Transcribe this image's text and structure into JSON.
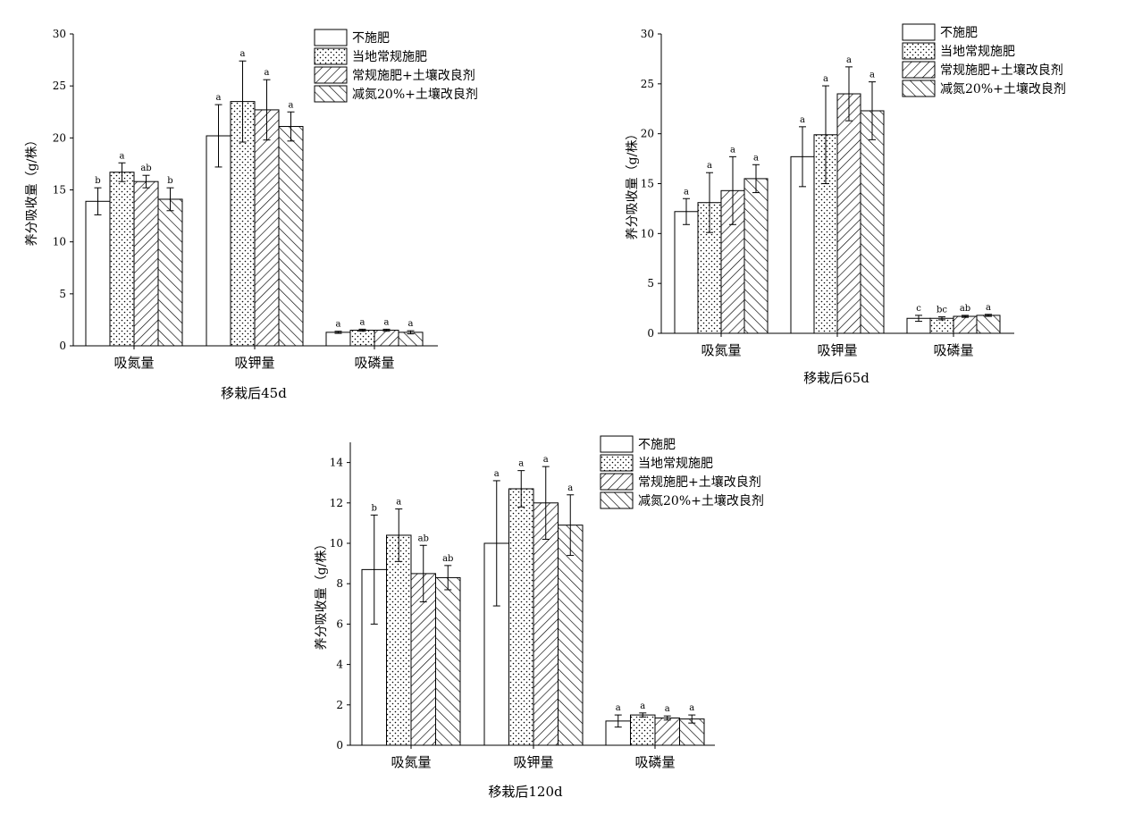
{
  "chart_data": [
    {
      "type": "bar",
      "title": "移栽后45d",
      "ylabel": "养分吸收量（g/株）",
      "ylim": [
        0,
        30
      ],
      "yticks": [
        0,
        5,
        10,
        15,
        20,
        25,
        30
      ],
      "categories": [
        "吸氮量",
        "吸钾量",
        "吸磷量"
      ],
      "legend_position": "top-right",
      "series": [
        {
          "name": "不施肥",
          "pattern": "blank",
          "values": [
            13.9,
            20.2,
            1.3
          ],
          "errors": [
            1.3,
            3.0,
            0.1
          ],
          "letters": [
            "b",
            "a",
            "a"
          ]
        },
        {
          "name": "当地常规施肥",
          "pattern": "dots",
          "values": [
            16.7,
            23.5,
            1.5
          ],
          "errors": [
            0.9,
            3.9,
            0.1
          ],
          "letters": [
            "a",
            "a",
            "a"
          ]
        },
        {
          "name": "常规施肥+土壤改良剂",
          "pattern": "backslash",
          "values": [
            15.8,
            22.7,
            1.5
          ],
          "errors": [
            0.6,
            2.9,
            0.1
          ],
          "letters": [
            "ab",
            "a",
            "a"
          ]
        },
        {
          "name": "减氮20%+土壤改良剂",
          "pattern": "slash",
          "values": [
            14.1,
            21.1,
            1.3
          ],
          "errors": [
            1.1,
            1.4,
            0.15
          ],
          "letters": [
            "b",
            "a",
            "a"
          ]
        }
      ]
    },
    {
      "type": "bar",
      "title": "移栽后65d",
      "ylabel": "养分吸收量（g/株）",
      "ylim": [
        0,
        30
      ],
      "yticks": [
        0,
        5,
        10,
        15,
        20,
        25,
        30
      ],
      "categories": [
        "吸氮量",
        "吸钾量",
        "吸磷量"
      ],
      "legend_position": "top-right",
      "series": [
        {
          "name": "不施肥",
          "pattern": "blank",
          "values": [
            12.2,
            17.7,
            1.5
          ],
          "errors": [
            1.3,
            3.0,
            0.3
          ],
          "letters": [
            "a",
            "a",
            "c"
          ]
        },
        {
          "name": "当地常规施肥",
          "pattern": "dots",
          "values": [
            13.1,
            19.9,
            1.5
          ],
          "errors": [
            3.0,
            4.9,
            0.15
          ],
          "letters": [
            "a",
            "a",
            "bc"
          ]
        },
        {
          "name": "常规施肥+土壤改良剂",
          "pattern": "backslash",
          "values": [
            14.3,
            24.0,
            1.7
          ],
          "errors": [
            3.4,
            2.7,
            0.1
          ],
          "letters": [
            "a",
            "a",
            "ab"
          ]
        },
        {
          "name": "减氮20%+土壤改良剂",
          "pattern": "slash",
          "values": [
            15.5,
            22.3,
            1.8
          ],
          "errors": [
            1.4,
            2.9,
            0.1
          ],
          "letters": [
            "a",
            "a",
            "a"
          ]
        }
      ]
    },
    {
      "type": "bar",
      "title": "移栽后120d",
      "ylabel": "养分吸收量（g/株）",
      "ylim": [
        0,
        15
      ],
      "yticks": [
        0,
        2,
        4,
        6,
        8,
        10,
        12,
        14
      ],
      "categories": [
        "吸氮量",
        "吸钾量",
        "吸磷量"
      ],
      "legend_position": "top-right",
      "series": [
        {
          "name": "不施肥",
          "pattern": "blank",
          "values": [
            8.7,
            10.0,
            1.2
          ],
          "errors": [
            2.7,
            3.1,
            0.3
          ],
          "letters": [
            "b",
            "a",
            "a"
          ]
        },
        {
          "name": "当地常规施肥",
          "pattern": "dots",
          "values": [
            10.4,
            12.7,
            1.5
          ],
          "errors": [
            1.3,
            0.9,
            0.1
          ],
          "letters": [
            "a",
            "a",
            "a"
          ]
        },
        {
          "name": "常规施肥+土壤改良剂",
          "pattern": "backslash",
          "values": [
            8.5,
            12.0,
            1.35
          ],
          "errors": [
            1.4,
            1.8,
            0.1
          ],
          "letters": [
            "ab",
            "a",
            "a"
          ]
        },
        {
          "name": "减氮20%+土壤改良剂",
          "pattern": "slash",
          "values": [
            8.3,
            10.9,
            1.3
          ],
          "errors": [
            0.6,
            1.5,
            0.2
          ],
          "letters": [
            "ab",
            "a",
            "a"
          ]
        }
      ]
    }
  ]
}
